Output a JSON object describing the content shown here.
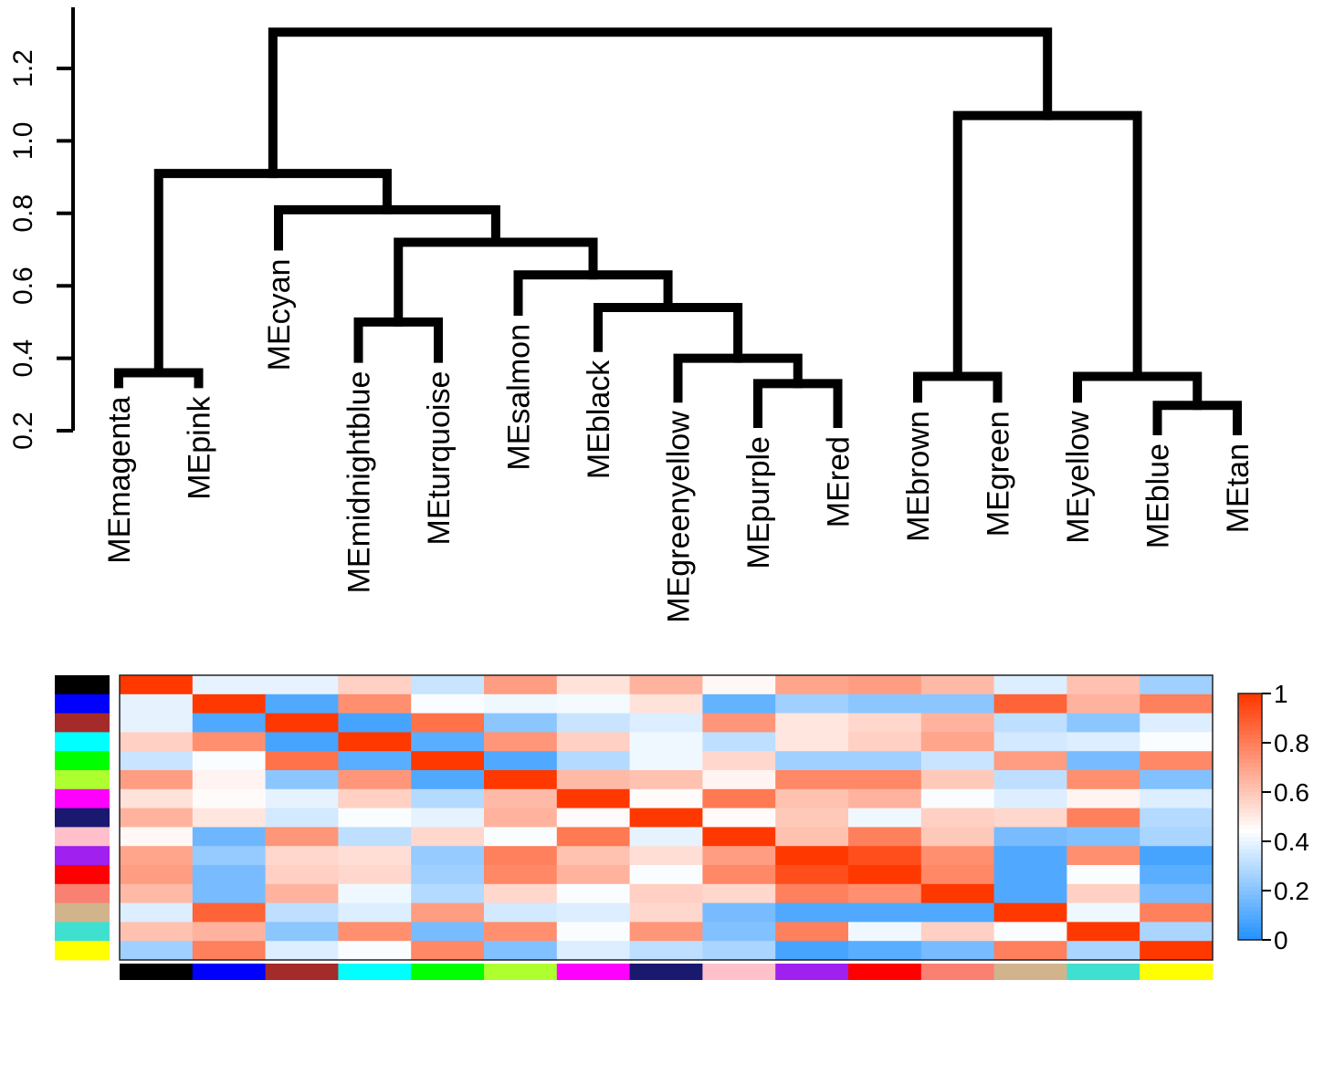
{
  "chart_data": [
    {
      "type": "dendrogram",
      "title": "",
      "ylabel": "",
      "ylim": [
        0.2,
        1.3
      ],
      "yticks": [
        "0.2",
        "0.4",
        "0.6",
        "0.8",
        "1.0",
        "1.2"
      ],
      "leaves": [
        {
          "label": "MEmagenta",
          "height": 0.33
        },
        {
          "label": "MEpink",
          "height": 0.33
        },
        {
          "label": "MEcyan",
          "height": 0.71
        },
        {
          "label": "MEmidnightblue",
          "height": 0.4
        },
        {
          "label": "MEturquoise",
          "height": 0.4
        },
        {
          "label": "MEsalmon",
          "height": 0.53
        },
        {
          "label": "MEblack",
          "height": 0.43
        },
        {
          "label": "MEgreenyellow",
          "height": 0.29
        },
        {
          "label": "MEpurple",
          "height": 0.22
        },
        {
          "label": "MEred",
          "height": 0.22
        },
        {
          "label": "MEbrown",
          "height": 0.29
        },
        {
          "label": "MEgreen",
          "height": 0.29
        },
        {
          "label": "MEyellow",
          "height": 0.29
        },
        {
          "label": "MEblue",
          "height": 0.2
        },
        {
          "label": "MEtan",
          "height": 0.2
        }
      ],
      "merges": [
        {
          "id": "m1",
          "left": "MEmagenta",
          "right": "MEpink",
          "height": 0.36
        },
        {
          "id": "m2",
          "left": "MEmidnightblue",
          "right": "MEturquoise",
          "height": 0.5
        },
        {
          "id": "m3",
          "left": "MEpurple",
          "right": "MEred",
          "height": 0.33
        },
        {
          "id": "m4",
          "left": "MEgreenyellow",
          "right": "m3",
          "height": 0.4
        },
        {
          "id": "m5",
          "left": "MEblack",
          "right": "m4",
          "height": 0.54
        },
        {
          "id": "m6",
          "left": "MEsalmon",
          "right": "m5",
          "height": 0.63
        },
        {
          "id": "m7",
          "left": "m2",
          "right": "m6",
          "height": 0.72
        },
        {
          "id": "m8",
          "left": "MEcyan",
          "right": "m7",
          "height": 0.81
        },
        {
          "id": "m9",
          "left": "m1",
          "right": "m8",
          "height": 0.91
        },
        {
          "id": "m10",
          "left": "MEblue",
          "right": "MEtan",
          "height": 0.27
        },
        {
          "id": "m11",
          "left": "MEyellow",
          "right": "m10",
          "height": 0.35
        },
        {
          "id": "m12",
          "left": "MEbrown",
          "right": "MEgreen",
          "height": 0.35
        },
        {
          "id": "m13",
          "left": "m12",
          "right": "m11",
          "height": 1.07
        },
        {
          "id": "m14",
          "left": "m9",
          "right": "m13",
          "height": 1.3
        }
      ]
    },
    {
      "type": "heatmap",
      "title": "",
      "column_colors": [
        "#000000",
        "#0000ff",
        "#a52a2a",
        "#00ffff",
        "#00ff00",
        "#adff2f",
        "#ff00ff",
        "#191970",
        "#ffc0cb",
        "#a020f0",
        "#ff0000",
        "#fa8072",
        "#d2b48c",
        "#40e0d0",
        "#ffff00"
      ],
      "row_colors": [
        "#000000",
        "#0000ff",
        "#a52a2a",
        "#00ffff",
        "#00ff00",
        "#adff2f",
        "#ff00ff",
        "#191970",
        "#ffc0cb",
        "#a020f0",
        "#ff0000",
        "#fa8072",
        "#d2b48c",
        "#40e0d0",
        "#ffff00"
      ],
      "values": [
        [
          1.0,
          0.4,
          0.4,
          0.58,
          0.34,
          0.72,
          0.53,
          0.66,
          0.47,
          0.7,
          0.72,
          0.64,
          0.38,
          0.62,
          0.26
        ],
        [
          0.4,
          1.0,
          0.1,
          0.76,
          0.44,
          0.42,
          0.43,
          0.53,
          0.14,
          0.26,
          0.22,
          0.22,
          0.88,
          0.66,
          0.8
        ],
        [
          0.4,
          0.1,
          1.0,
          0.08,
          0.84,
          0.22,
          0.34,
          0.38,
          0.74,
          0.52,
          0.56,
          0.66,
          0.32,
          0.22,
          0.38
        ],
        [
          0.58,
          0.76,
          0.08,
          1.0,
          0.12,
          0.74,
          0.58,
          0.42,
          0.32,
          0.52,
          0.58,
          0.7,
          0.36,
          0.38,
          0.44
        ],
        [
          0.34,
          0.44,
          0.84,
          0.12,
          1.0,
          0.1,
          0.3,
          0.42,
          0.56,
          0.26,
          0.26,
          0.34,
          0.72,
          0.18,
          0.78
        ],
        [
          0.72,
          0.48,
          0.22,
          0.74,
          0.1,
          1.0,
          0.64,
          0.62,
          0.48,
          0.78,
          0.78,
          0.6,
          0.32,
          0.76,
          0.2
        ],
        [
          0.53,
          0.46,
          0.4,
          0.58,
          0.3,
          0.64,
          1.0,
          0.46,
          0.82,
          0.62,
          0.66,
          0.44,
          0.38,
          0.48,
          0.38
        ],
        [
          0.66,
          0.52,
          0.36,
          0.44,
          0.4,
          0.66,
          0.46,
          1.0,
          0.46,
          0.6,
          0.42,
          0.58,
          0.56,
          0.8,
          0.3
        ],
        [
          0.47,
          0.16,
          0.74,
          0.32,
          0.56,
          0.44,
          0.82,
          0.4,
          1.0,
          0.62,
          0.8,
          0.6,
          0.18,
          0.2,
          0.28
        ],
        [
          0.7,
          0.24,
          0.56,
          0.54,
          0.24,
          0.8,
          0.62,
          0.54,
          0.72,
          1.0,
          0.94,
          0.76,
          0.1,
          0.76,
          0.08
        ],
        [
          0.72,
          0.18,
          0.58,
          0.56,
          0.26,
          0.78,
          0.66,
          0.44,
          0.78,
          0.94,
          1.0,
          0.78,
          0.1,
          0.44,
          0.12
        ],
        [
          0.64,
          0.18,
          0.66,
          0.42,
          0.3,
          0.56,
          0.44,
          0.58,
          0.56,
          0.8,
          0.76,
          1.0,
          0.1,
          0.58,
          0.18
        ],
        [
          0.38,
          0.88,
          0.32,
          0.38,
          0.72,
          0.36,
          0.38,
          0.56,
          0.18,
          0.1,
          0.1,
          0.1,
          1.0,
          0.42,
          0.8
        ],
        [
          0.62,
          0.66,
          0.22,
          0.76,
          0.18,
          0.76,
          0.44,
          0.74,
          0.2,
          0.8,
          0.42,
          0.58,
          0.44,
          1.0,
          0.28
        ],
        [
          0.26,
          0.8,
          0.38,
          0.44,
          0.78,
          0.2,
          0.38,
          0.32,
          0.28,
          0.08,
          0.12,
          0.18,
          0.8,
          0.28,
          1.0
        ]
      ],
      "colorbar": {
        "range": [
          0,
          1
        ],
        "ticks": [
          "0",
          "0.2",
          "0.4",
          "0.6",
          "0.8",
          "1"
        ]
      }
    }
  ]
}
